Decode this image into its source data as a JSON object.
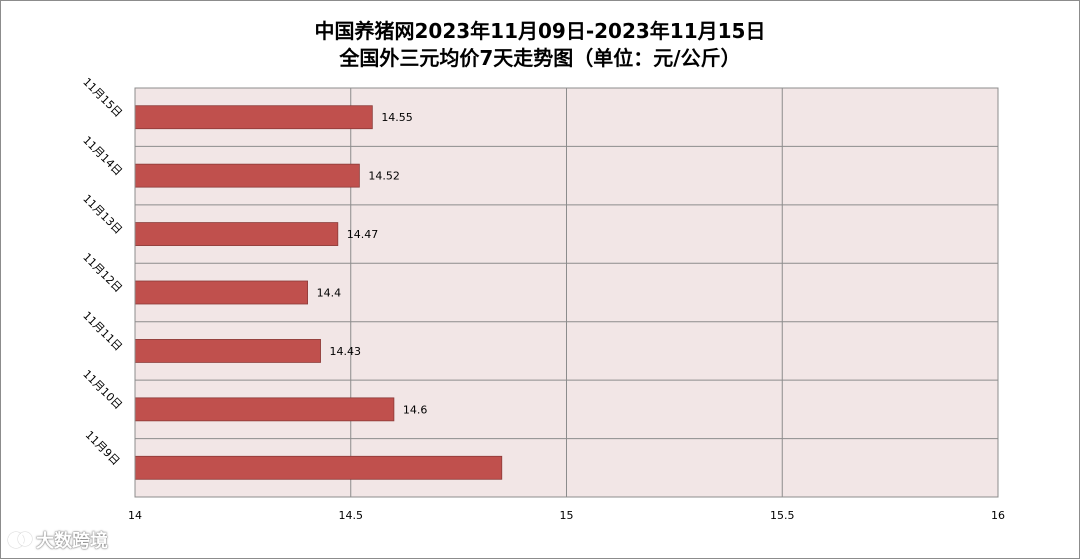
{
  "title": {
    "line1": "中国养猪网2023年11月09日-2023年11月15日",
    "line2": "全国外三元均价7天走势图（单位：元/公斤）"
  },
  "chart_data": {
    "type": "bar",
    "orientation": "horizontal",
    "title": "中国养猪网2023年11月09日-2023年11月15日 全国外三元均价7天走势图（单位：元/公斤）",
    "categories": [
      "11月15日",
      "11月14日",
      "11月13日",
      "11月12日",
      "11月11日",
      "11月10日",
      "11月9日"
    ],
    "values": [
      14.55,
      14.52,
      14.47,
      14.4,
      14.43,
      14.6,
      14.85
    ],
    "data_labels": [
      "14.55",
      "14.52",
      "14.47",
      "14.4",
      "14.43",
      "14.6",
      ""
    ],
    "xlim": [
      14,
      16
    ],
    "x_ticks": [
      "14",
      "14.5",
      "15",
      "15.5",
      "16"
    ],
    "grid": true,
    "bar_color": "#c0504d",
    "plot_background": "#f2e6e6"
  },
  "watermark": {
    "text": "大数跨境"
  }
}
